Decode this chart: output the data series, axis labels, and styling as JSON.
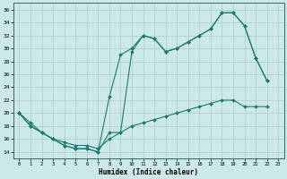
{
  "xlabel": "Humidex (Indice chaleur)",
  "bg_color": "#cce8e8",
  "grid_color": "#b0d0d0",
  "line_color": "#1a7a6e",
  "xlim": [
    -0.5,
    23.5
  ],
  "ylim": [
    13,
    37
  ],
  "xticks": [
    0,
    1,
    2,
    3,
    4,
    5,
    6,
    7,
    8,
    9,
    10,
    11,
    12,
    13,
    14,
    15,
    16,
    17,
    18,
    19,
    20,
    21,
    22,
    23
  ],
  "yticks": [
    14,
    16,
    18,
    20,
    22,
    24,
    26,
    28,
    30,
    32,
    34,
    36
  ],
  "line1_x": [
    0,
    1,
    2,
    3,
    4,
    5,
    6,
    7,
    8,
    9,
    10,
    11,
    12,
    13,
    14,
    15,
    16,
    17,
    18,
    19,
    20,
    21,
    22
  ],
  "line1_y": [
    20,
    18,
    17,
    16,
    15,
    14.5,
    14.5,
    14,
    17,
    17,
    29.5,
    32,
    31.5,
    29.5,
    30,
    31,
    32,
    33,
    35.5,
    35.5,
    33.5,
    28.5,
    25
  ],
  "line2_x": [
    0,
    1,
    2,
    3,
    4,
    5,
    6,
    7,
    8,
    9,
    10,
    11,
    12,
    13,
    14,
    15,
    16,
    17,
    18,
    19,
    20,
    21,
    22
  ],
  "line2_y": [
    20,
    18,
    17,
    16,
    15,
    14.5,
    14.5,
    14,
    22.5,
    29,
    30,
    32,
    31.5,
    29.5,
    30,
    31,
    32,
    33,
    35.5,
    35.5,
    33.5,
    28.5,
    25
  ],
  "line3_x": [
    0,
    1,
    2,
    3,
    4,
    5,
    6,
    7,
    8,
    9,
    10,
    11,
    12,
    13,
    14,
    15,
    16,
    17,
    18,
    19,
    20,
    21,
    22
  ],
  "line3_y": [
    20,
    18.5,
    17,
    16,
    15.5,
    15,
    15,
    14.5,
    16,
    17,
    18,
    18.5,
    19,
    19.5,
    20,
    20.5,
    21,
    21.5,
    22,
    22,
    21,
    21,
    21
  ]
}
